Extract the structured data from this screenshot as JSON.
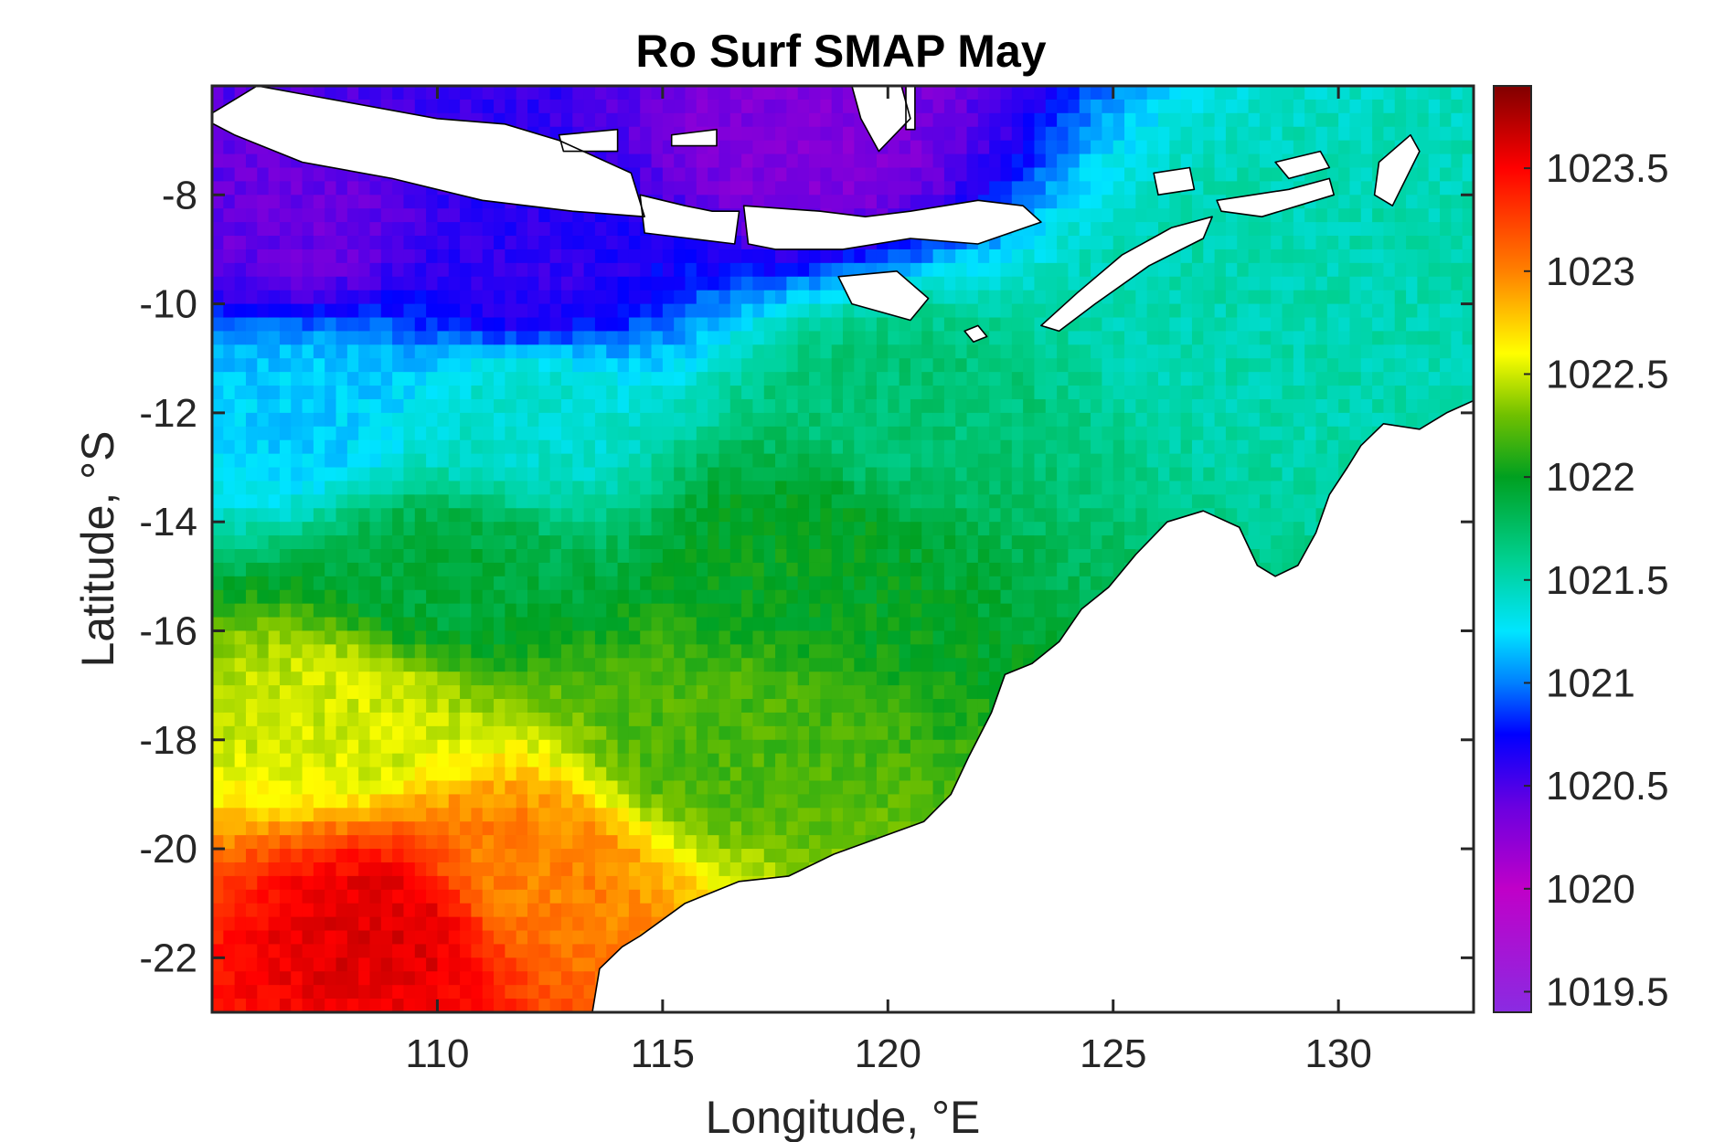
{
  "chart_data": {
    "type": "heatmap",
    "title": "Ro Surf SMAP May",
    "xlabel": "Longitude, °E",
    "ylabel": "Latitude, °S",
    "xlim": [
      105,
      133
    ],
    "ylim": [
      -23,
      -6
    ],
    "x_ticks": [
      110,
      115,
      120,
      125,
      130
    ],
    "x_tick_labels": [
      "110",
      "115",
      "120",
      "125",
      "130"
    ],
    "y_ticks": [
      -8,
      -10,
      -12,
      -14,
      -16,
      -18,
      -20,
      -22
    ],
    "y_tick_labels": [
      "-8",
      "-10",
      "-12",
      "-14",
      "-16",
      "-18",
      "-20",
      "-22"
    ],
    "colorbar": {
      "clim": [
        1019.4,
        1023.9
      ],
      "ticks": [
        1019.5,
        1020,
        1020.5,
        1021,
        1021.5,
        1022,
        1022.5,
        1023,
        1023.5
      ],
      "tick_labels": [
        "1019.5",
        "1020",
        "1020.5",
        "1021",
        "1021.5",
        "1022",
        "1022.5",
        "1023",
        "1023.5"
      ],
      "colormap_stops": [
        {
          "value": 1019.4,
          "color": "#8a2be2"
        },
        {
          "value": 1020.0,
          "color": "#c000c8"
        },
        {
          "value": 1020.4,
          "color": "#6a00e0"
        },
        {
          "value": 1020.75,
          "color": "#0000ff"
        },
        {
          "value": 1021.0,
          "color": "#0080ff"
        },
        {
          "value": 1021.25,
          "color": "#00e5ff"
        },
        {
          "value": 1021.6,
          "color": "#00d090"
        },
        {
          "value": 1022.0,
          "color": "#00a020"
        },
        {
          "value": 1022.3,
          "color": "#70c000"
        },
        {
          "value": 1022.6,
          "color": "#ffff00"
        },
        {
          "value": 1023.0,
          "color": "#ff8000"
        },
        {
          "value": 1023.5,
          "color": "#ff0000"
        },
        {
          "value": 1023.9,
          "color": "#800000"
        }
      ]
    },
    "field_description_points": [
      {
        "lon": 107,
        "lat": -8.5,
        "value": 1020.4
      },
      {
        "lon": 112,
        "lat": -9.5,
        "value": 1020.6
      },
      {
        "lon": 118,
        "lat": -7.0,
        "value": 1020.3
      },
      {
        "lon": 107,
        "lat": -12,
        "value": 1021.2
      },
      {
        "lon": 112,
        "lat": -12,
        "value": 1021.4
      },
      {
        "lon": 120,
        "lat": -12,
        "value": 1021.7
      },
      {
        "lon": 128,
        "lat": -10,
        "value": 1021.5
      },
      {
        "lon": 110,
        "lat": -15,
        "value": 1021.9
      },
      {
        "lon": 118,
        "lat": -14.5,
        "value": 1022.0
      },
      {
        "lon": 108,
        "lat": -17.5,
        "value": 1022.5
      },
      {
        "lon": 116,
        "lat": -18,
        "value": 1022.2
      },
      {
        "lon": 109,
        "lat": -21.5,
        "value": 1023.6
      },
      {
        "lon": 112,
        "lat": -20.5,
        "value": 1023.0
      }
    ]
  },
  "colors": {
    "frame": "#262626",
    "coastline": "#000000",
    "land": "#ffffff"
  }
}
